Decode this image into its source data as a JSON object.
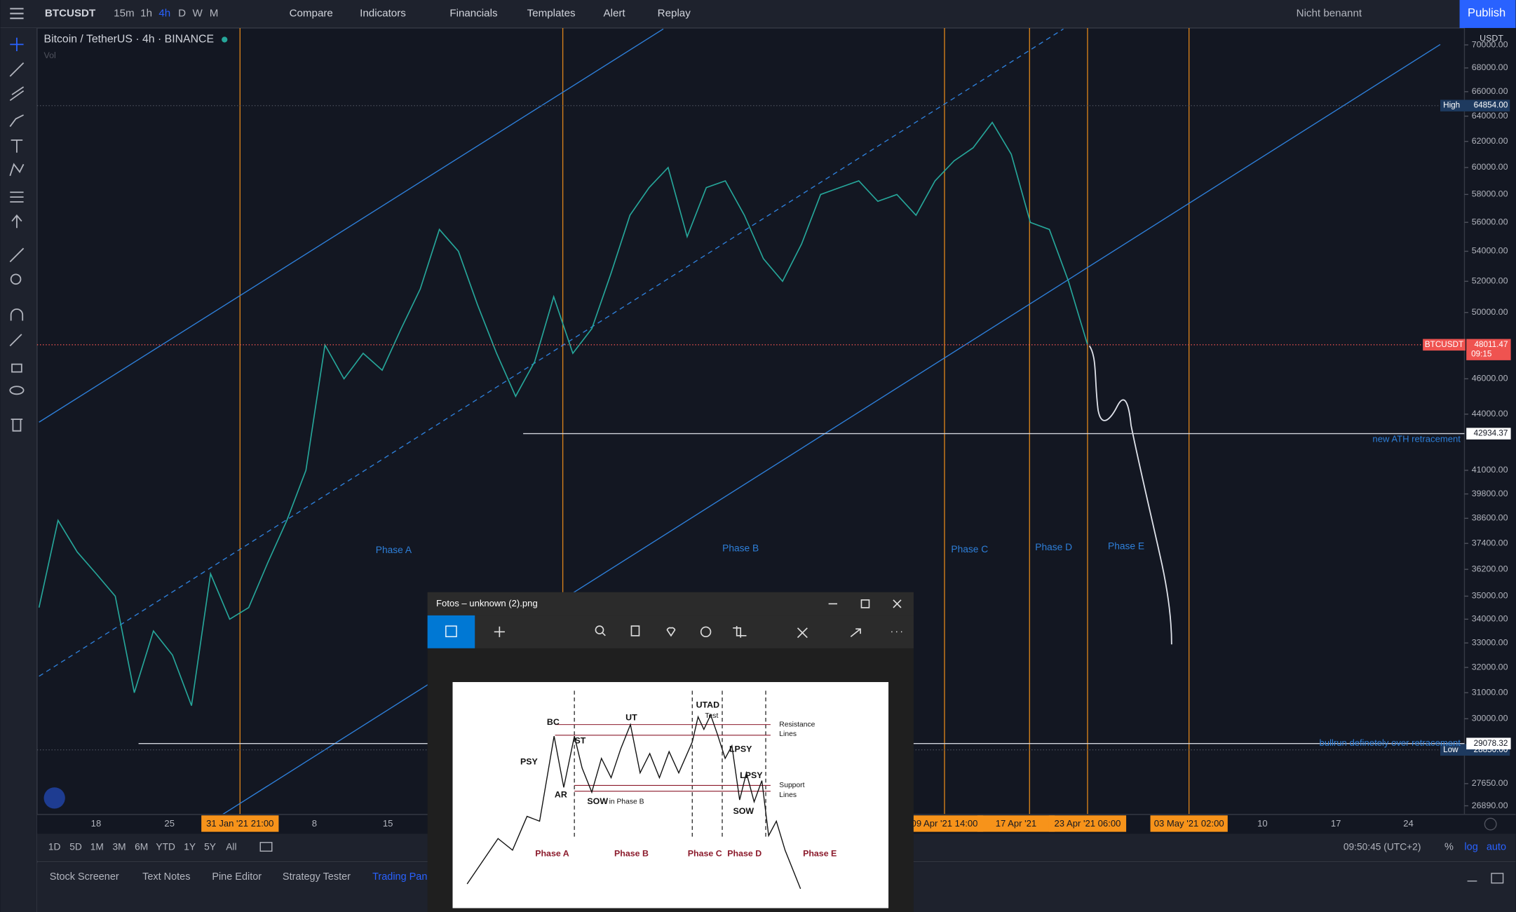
{
  "toolbar": {
    "symbol": "BTCUSDT",
    "intervals": [
      "15m",
      "1h",
      "4h",
      "D",
      "W",
      "M"
    ],
    "buttons": [
      "Compare",
      "Indicators",
      "Financials",
      "Templates",
      "Alert",
      "Replay"
    ],
    "layout_name": "Nicht benannt",
    "publish": "Publish"
  },
  "chart": {
    "title": "Bitcoin / TetherUS · 4h · BINANCE",
    "volume_label": "Vol",
    "currency": "USDT",
    "log": true,
    "ylim": [
      26600,
      71500
    ],
    "yticks": [
      {
        "value": 70000,
        "label": "70000.00"
      },
      {
        "value": 68000,
        "label": "68000.00"
      },
      {
        "value": 66000,
        "label": "66000.00"
      },
      {
        "value": 64000,
        "label": "64000.00"
      },
      {
        "value": 62000,
        "label": "62000.00"
      },
      {
        "value": 60000,
        "label": "60000.00"
      },
      {
        "value": 58000,
        "label": "58000.00"
      },
      {
        "value": 56000,
        "label": "56000.00"
      },
      {
        "value": 54000,
        "label": "54000.00"
      },
      {
        "value": 52000,
        "label": "52000.00"
      },
      {
        "value": 50000,
        "label": "50000.00"
      },
      {
        "value": 46000,
        "label": "46000.00"
      },
      {
        "value": 44000,
        "label": "44000.00"
      },
      {
        "value": 41000,
        "label": "41000.00"
      },
      {
        "value": 39800,
        "label": "39800.00"
      },
      {
        "value": 38600,
        "label": "38600.00"
      },
      {
        "value": 37400,
        "label": "37400.00"
      },
      {
        "value": 36200,
        "label": "36200.00"
      },
      {
        "value": 35000,
        "label": "35000.00"
      },
      {
        "value": 34000,
        "label": "34000.00"
      },
      {
        "value": 33000,
        "label": "33000.00"
      },
      {
        "value": 32000,
        "label": "32000.00"
      },
      {
        "value": 31000,
        "label": "31000.00"
      },
      {
        "value": 30000,
        "label": "30000.00"
      },
      {
        "value": 27650,
        "label": "27650.00"
      },
      {
        "value": 26890,
        "label": "26890.00"
      }
    ],
    "price_color": "#26a69a",
    "price": [
      34500,
      38500,
      37000,
      36000,
      35000,
      31000,
      33500,
      32500,
      30500,
      36000,
      34000,
      34500,
      36500,
      38500,
      41000,
      48000,
      46000,
      47500,
      46500,
      49000,
      51500,
      55500,
      54000,
      50500,
      47500,
      45000,
      47000,
      51000,
      47500,
      49000,
      52500,
      56500,
      58500,
      60000,
      55000,
      58500,
      59000,
      56500,
      53500,
      52000,
      54500,
      58000,
      58500,
      59000,
      57500,
      58000,
      56500,
      59000,
      60500,
      61500,
      63500,
      61000,
      56000,
      55500,
      52000,
      48011.47
    ],
    "high": {
      "label": "High",
      "value": 64854,
      "value_label": "64854.00"
    },
    "low": {
      "label": "Low",
      "value": 28850,
      "value_label": "28850.00"
    },
    "current": {
      "symbol": "BTCUSDT",
      "value": 48011.47,
      "value_label": "48011.47",
      "countdown": "09:15"
    },
    "levels": [
      {
        "value": 42934.37,
        "value_label": "42934.37",
        "note": "new ATH retracement"
      },
      {
        "value": 29078.32,
        "value_label": "29078.32",
        "note": "bullrun definetely over retracement"
      }
    ],
    "phases": [
      "Phase A",
      "Phase B",
      "Phase C",
      "Phase D",
      "Phase E"
    ],
    "time_labels": [
      "18",
      "25",
      "31 Jan '21   21:00",
      "8",
      "15",
      "09 Apr '21   14:00",
      "17 Apr '21",
      "23 Apr '21   06:00",
      "03 May '21   02:00",
      "10",
      "17",
      "24"
    ]
  },
  "bottom_bar": {
    "ranges": [
      "1D",
      "5D",
      "1M",
      "3M",
      "6M",
      "YTD",
      "1Y",
      "5Y",
      "All"
    ],
    "clock": "09:50:45 (UTC+2)",
    "scale_buttons": [
      "%",
      "log",
      "auto"
    ],
    "tabs": [
      "Stock Screener",
      "Text Notes",
      "Pine Editor",
      "Strategy Tester",
      "Trading Panel"
    ]
  },
  "popup": {
    "title": "Fotos – unknown (2).png",
    "diagram_labels": [
      "BC",
      "PSY",
      "AR",
      "ST",
      "UT",
      "SOW",
      "in Phase B",
      "UTAD",
      "Test",
      "Resistance",
      "Lines",
      "LPSY",
      "LPSY",
      "Support",
      "Lines",
      "SOW",
      "Phase A",
      "Phase B",
      "Phase C",
      "Phase D",
      "Phase E"
    ]
  }
}
